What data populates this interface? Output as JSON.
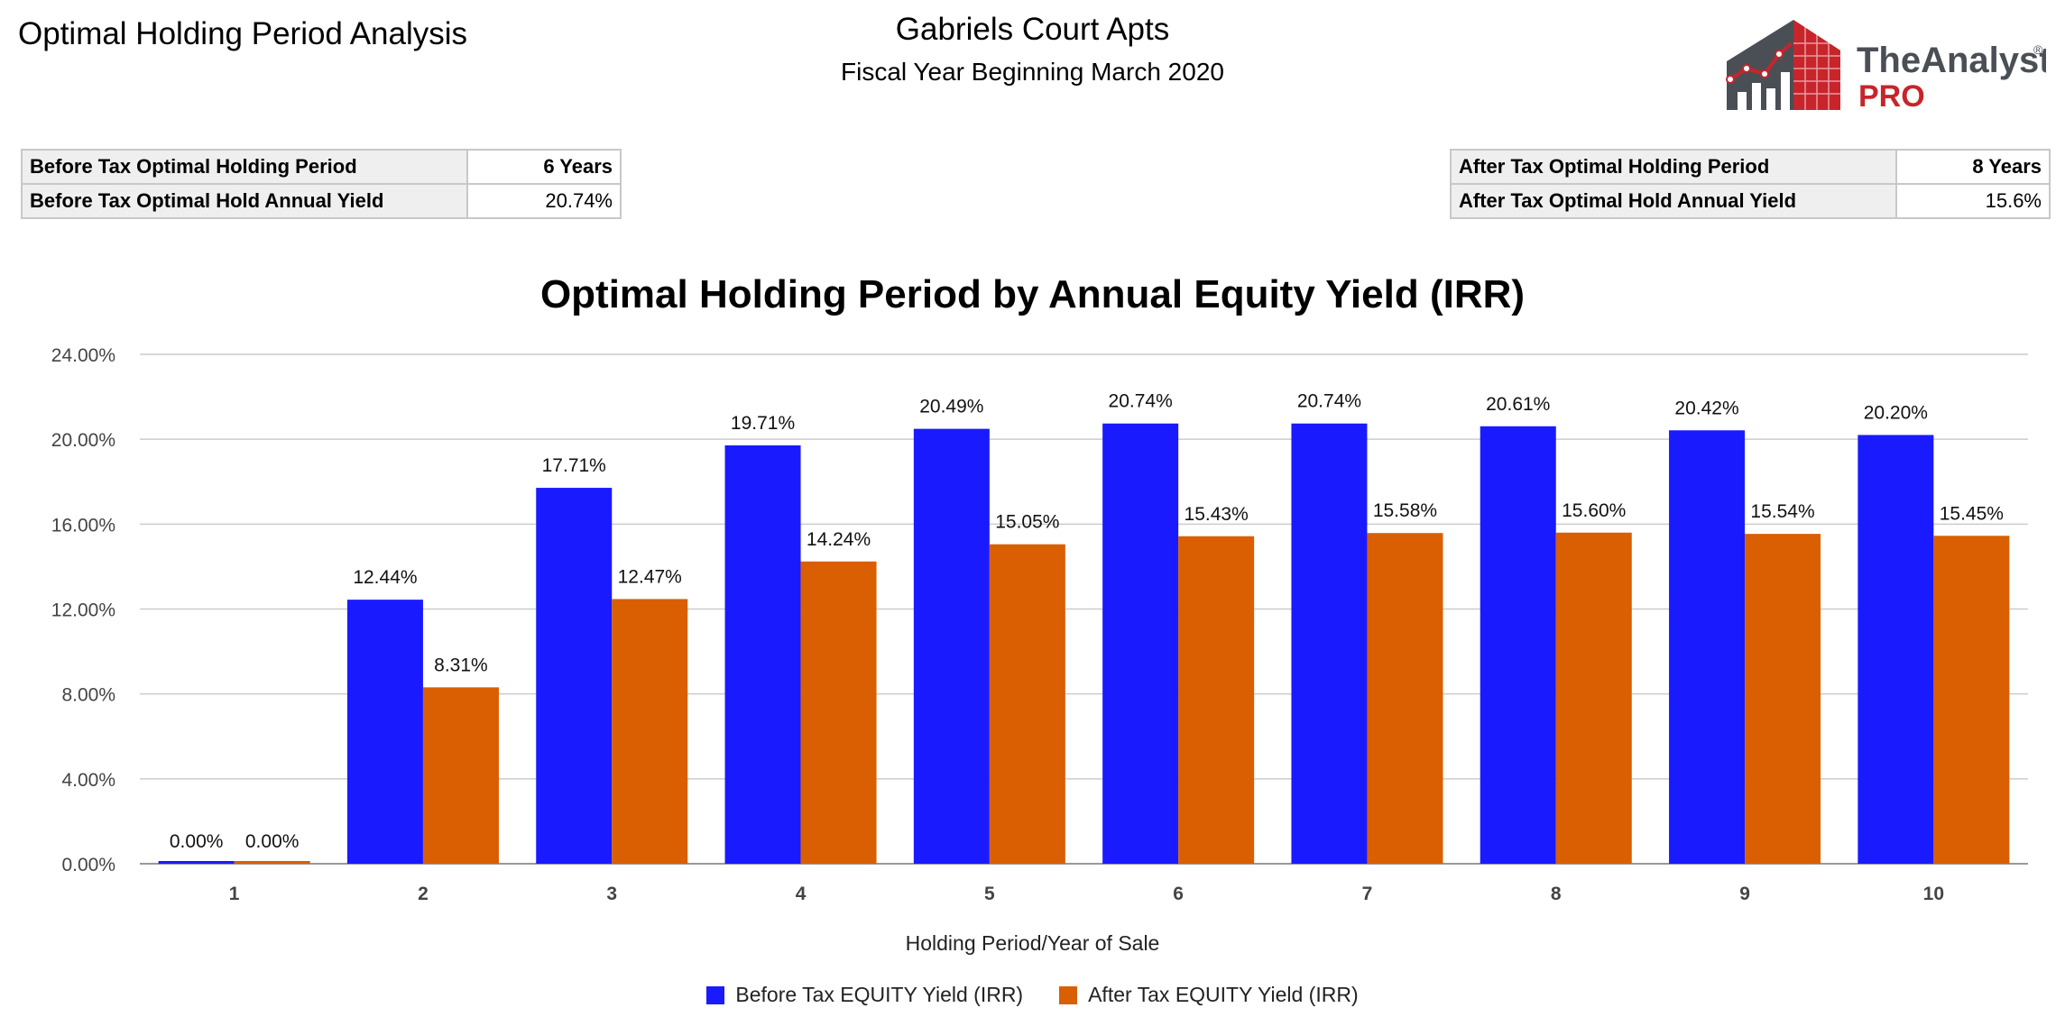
{
  "header": {
    "page_title": "Optimal Holding Period Analysis",
    "property_name": "Gabriels Court Apts",
    "fiscal_year": "Fiscal Year Beginning March 2020"
  },
  "logo": {
    "line1": "TheAnalyst",
    "tm": "®",
    "line2": "PRO",
    "icon": "building-chart-logo-icon"
  },
  "before_tax": {
    "period_label": "Before Tax Optimal Holding Period",
    "period_value": "6 Years",
    "yield_label": "Before Tax Optimal Hold Annual Yield",
    "yield_value": "20.74%"
  },
  "after_tax": {
    "period_label": "After Tax Optimal Holding Period",
    "period_value": "8 Years",
    "yield_label": "After Tax Optimal Hold Annual Yield",
    "yield_value": "15.6%"
  },
  "chart_data": {
    "type": "bar",
    "title": "Optimal Holding Period by Annual Equity Yield (IRR)",
    "xlabel": "Holding Period/Year of Sale",
    "ylabel": "",
    "ylim": [
      0,
      24
    ],
    "yticks": [
      "0.00%",
      "4.00%",
      "8.00%",
      "12.00%",
      "16.00%",
      "20.00%",
      "24.00%"
    ],
    "grid": true,
    "legend_position": "bottom",
    "categories": [
      "1",
      "2",
      "3",
      "4",
      "5",
      "6",
      "7",
      "8",
      "9",
      "10"
    ],
    "series": [
      {
        "name": "Before Tax EQUITY Yield (IRR)",
        "color": "#1a1aff",
        "values": [
          0.0,
          12.44,
          17.71,
          19.71,
          20.49,
          20.74,
          20.74,
          20.61,
          20.42,
          20.2
        ],
        "labels": [
          "0.00%",
          "12.44%",
          "17.71%",
          "19.71%",
          "20.49%",
          "20.74%",
          "20.74%",
          "20.61%",
          "20.42%",
          "20.20%"
        ]
      },
      {
        "name": "After Tax EQUITY Yield (IRR)",
        "color": "#d95f02",
        "values": [
          0.0,
          8.31,
          12.47,
          14.24,
          15.05,
          15.43,
          15.58,
          15.6,
          15.54,
          15.45
        ],
        "labels": [
          "0.00%",
          "8.31%",
          "12.47%",
          "14.24%",
          "15.05%",
          "15.43%",
          "15.58%",
          "15.60%",
          "15.54%",
          "15.45%"
        ]
      }
    ]
  }
}
